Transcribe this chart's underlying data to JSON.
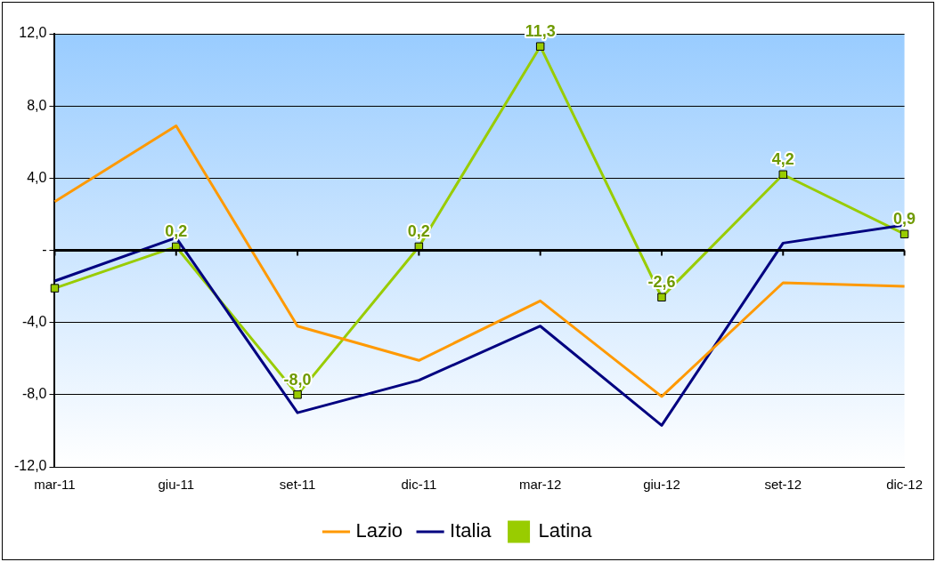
{
  "chart_data": {
    "type": "line",
    "categories": [
      "mar-11",
      "giu-11",
      "set-11",
      "dic-11",
      "mar-12",
      "giu-12",
      "set-12",
      "dic-12"
    ],
    "series": [
      {
        "name": "Lazio",
        "color": "#ff9900",
        "values": [
          2.7,
          6.9,
          -4.2,
          -6.1,
          -2.8,
          -8.1,
          -1.8,
          -2.0
        ]
      },
      {
        "name": "Italia",
        "color": "#000080",
        "values": [
          -1.7,
          0.7,
          -9.0,
          -7.2,
          -4.2,
          -9.7,
          0.4,
          1.4
        ]
      },
      {
        "name": "Latina",
        "color": "#99cc00",
        "marker": "square",
        "values": [
          -2.1,
          0.2,
          -8.0,
          0.2,
          11.3,
          -2.6,
          4.2,
          0.9
        ],
        "value_labels": [
          null,
          "0,2",
          "-8,0",
          "0,2",
          "11,3",
          "-2,6",
          "4,2",
          "0,9"
        ]
      }
    ],
    "ylim": [
      -12,
      12
    ],
    "yticks": [
      {
        "value": -12,
        "label": "-12,0"
      },
      {
        "value": -8,
        "label": "-8,0"
      },
      {
        "value": -4,
        "label": "-4,0"
      },
      {
        "value": 0,
        "label": "-"
      },
      {
        "value": 4,
        "label": "4,0"
      },
      {
        "value": 8,
        "label": "8,0"
      },
      {
        "value": 12,
        "label": "12,0"
      }
    ],
    "grid": "y",
    "legend": "bottom",
    "marker": "none",
    "line_style": "solid"
  }
}
